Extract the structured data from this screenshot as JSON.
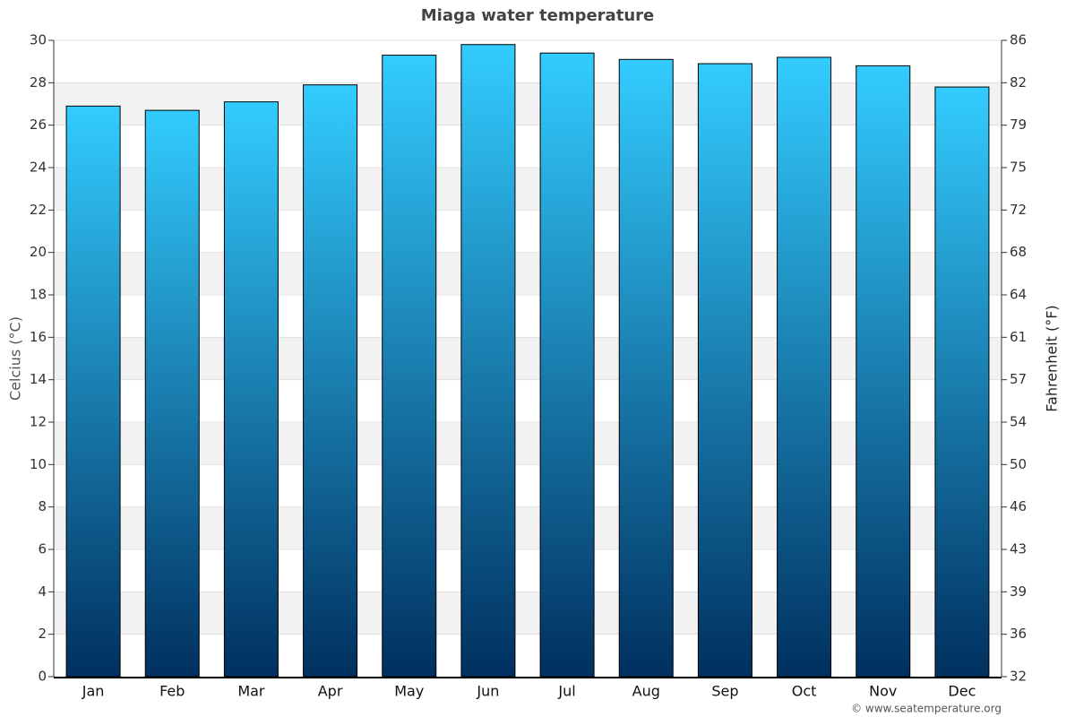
{
  "chart_data": {
    "type": "bar",
    "title": "Miaga water temperature",
    "categories": [
      "Jan",
      "Feb",
      "Mar",
      "Apr",
      "May",
      "Jun",
      "Jul",
      "Aug",
      "Sep",
      "Oct",
      "Nov",
      "Dec"
    ],
    "values": [
      26.9,
      26.7,
      27.1,
      27.9,
      29.3,
      29.8,
      29.4,
      29.1,
      28.9,
      29.2,
      28.8,
      27.8
    ],
    "gradient": [
      "#33ccff",
      "#00305f"
    ],
    "ylabel": "Celcius (°C)",
    "y2label": "Fahrenheit (°F)",
    "ylim": [
      0,
      30
    ],
    "yticks": [
      0,
      2,
      4,
      6,
      8,
      10,
      12,
      14,
      16,
      18,
      20,
      22,
      24,
      26,
      28,
      30
    ],
    "y2lim": [
      32,
      86
    ],
    "y2ticks": [
      32,
      {
        "value": 35.6,
        "label": "36"
      },
      {
        "value": 39.2,
        "label": "39"
      },
      {
        "value": 42.8,
        "label": "43"
      },
      {
        "value": 46.4,
        "label": "46"
      },
      50,
      {
        "value": 53.6,
        "label": "54"
      },
      {
        "value": 57.2,
        "label": "57"
      },
      {
        "value": 60.8,
        "label": "61"
      },
      {
        "value": 64.4,
        "label": "64"
      },
      68,
      {
        "value": 71.6,
        "label": "72"
      },
      {
        "value": 75.2,
        "label": "75"
      },
      {
        "value": 78.8,
        "label": "79"
      },
      {
        "value": 82.4,
        "label": "82"
      },
      86
    ],
    "grid": true,
    "credit": "© www.seatemperature.org"
  }
}
